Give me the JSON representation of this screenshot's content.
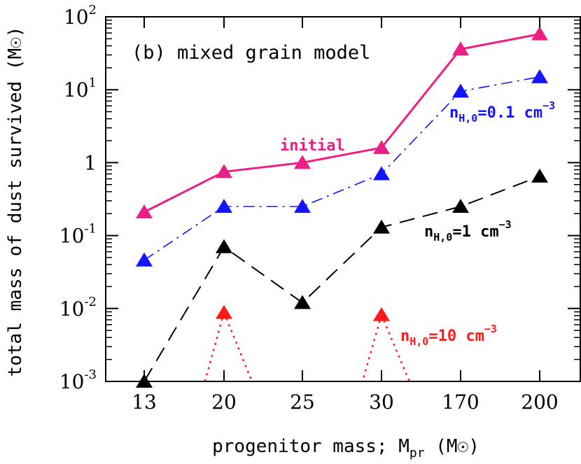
{
  "chart_data": {
    "type": "line",
    "panel_title": "(b) mixed grain model",
    "xlabel": "progenitor mass; M",
    "xlabel_sub": "pr",
    "xlabel_unit": " (M",
    "xlabel_unit_close": ")",
    "ylabel": "total mass of dust survived (M",
    "ylabel_close": ")",
    "sun_symbol": "☉",
    "y_scale": "log",
    "ylim": [
      0.001,
      100
    ],
    "categories": [
      "13",
      "20",
      "25",
      "30",
      "170",
      "200"
    ],
    "y_ticks": [
      {
        "base": "10",
        "exp": "-3"
      },
      {
        "base": "10",
        "exp": "-2"
      },
      {
        "base": "10",
        "exp": "-1"
      },
      {
        "base": "1",
        "exp": ""
      },
      {
        "base": "10",
        "exp": "1"
      },
      {
        "base": "10",
        "exp": "2"
      }
    ],
    "series": [
      {
        "name": "initial",
        "color": "#ec1f85",
        "style": "solid",
        "values": [
          0.21,
          0.75,
          1.0,
          1.6,
          36,
          58
        ]
      },
      {
        "name": "n_H,0=0.1 cm^-3",
        "label_pre": "n",
        "label_sub": "H,0",
        "label_mid": "=0.1 cm",
        "label_sup": "−3",
        "color": "#1414ff",
        "style": "dashdot",
        "values": [
          0.046,
          0.25,
          0.25,
          0.7,
          9.5,
          15
        ]
      },
      {
        "name": "n_H,0=1 cm^-3",
        "label_pre": "n",
        "label_sub": "H,0",
        "label_mid": "=1 cm",
        "label_sup": "−3",
        "color": "#000000",
        "style": "dashed",
        "values": [
          0.001,
          0.07,
          0.012,
          0.13,
          0.25,
          0.65
        ]
      },
      {
        "name": "n_H,0=10 cm^-3",
        "label_pre": "n",
        "label_sub": "H,0",
        "label_mid": "=10 cm",
        "label_sup": "−3",
        "color": "#ff1a1a",
        "style": "dotted",
        "values": [
          null,
          0.0088,
          null,
          0.0082,
          null,
          null
        ]
      }
    ]
  }
}
